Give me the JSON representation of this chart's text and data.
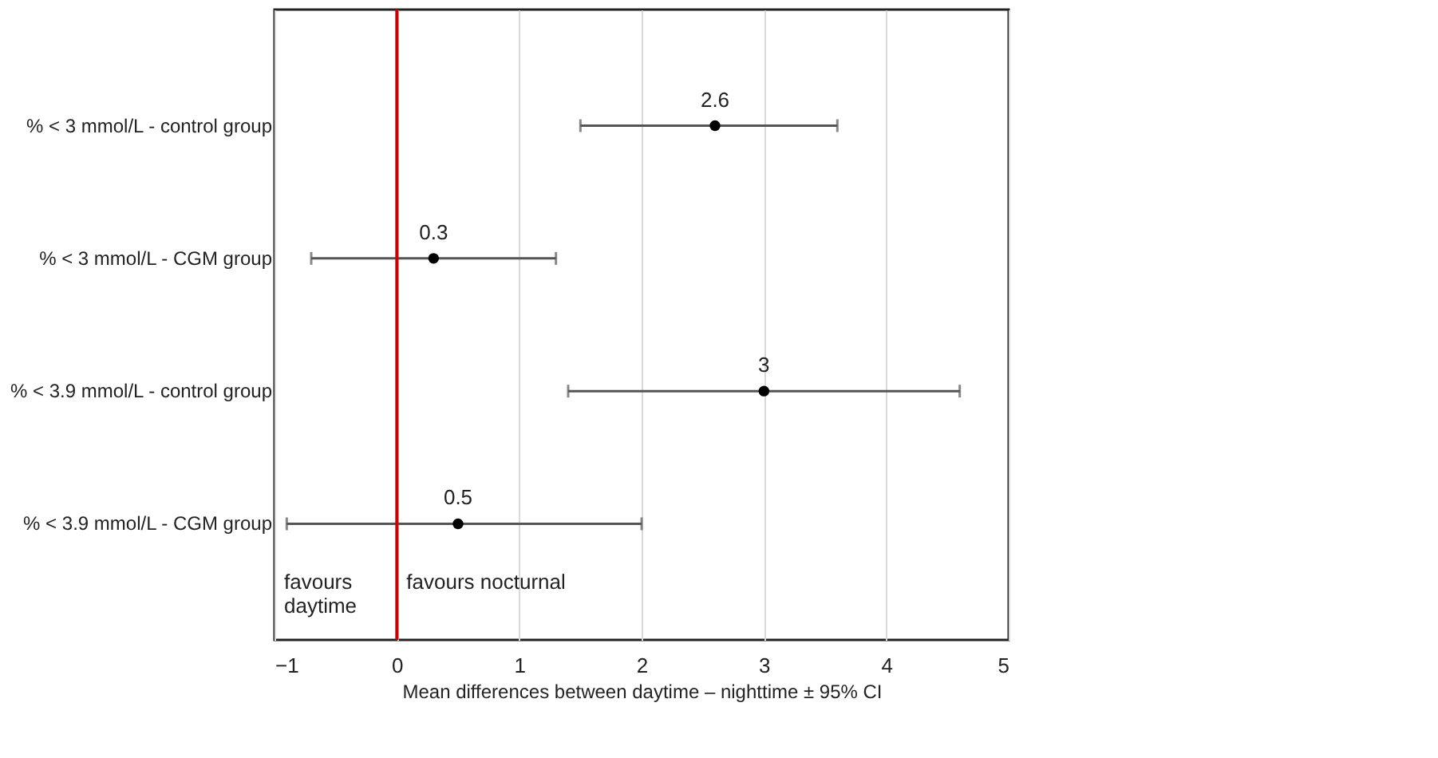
{
  "chart_data": {
    "type": "scatter",
    "orientation": "horizontal",
    "xlabel": "Mean differences between daytime – nighttime ± 95% CI",
    "categories": [
      "% < 3 mmol/L - control group",
      "% < 3 mmol/L - CGM group",
      "% < 3.9 mmol/L - control group",
      "% < 3.9 mmol/L - CGM group"
    ],
    "series": [
      {
        "color": "#000000",
        "values": [
          2.6,
          0.3,
          3,
          0.5
        ],
        "errors": [
          [
            1.5,
            3.6
          ],
          [
            -0.7,
            1.3
          ],
          [
            1.4,
            4.6
          ],
          [
            -0.9,
            2.0
          ]
        ]
      }
    ],
    "xlim": [
      -1,
      5
    ],
    "xticks": [
      -1,
      0,
      1,
      2,
      3,
      4,
      5
    ],
    "grid": "x",
    "marker": "circle",
    "data_labels": true,
    "ref_lines": [
      {
        "axis": "x",
        "value": 0,
        "color": "#cc0000"
      }
    ],
    "annotations": [
      "favours daytime",
      "favours nocturnal"
    ]
  }
}
